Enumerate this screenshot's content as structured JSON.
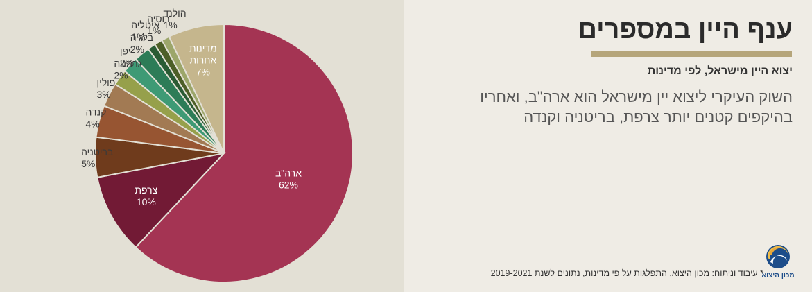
{
  "header": {
    "title": "ענף היין במספרים",
    "subtitle": "יצוא היין מישראל, לפי מדינות",
    "description": "השוק העיקרי ליצוא יין מישראל הוא ארה\"ב, ואחריו בהיקפים קטנים יותר צרפת, בריטניה וקנדה"
  },
  "footnote": "* עיבוד וניתוח: מכון היצוא, התפלגות על פי מדינות, נתונים לשנת 2019-2021",
  "logo": {
    "text": "מכון היצוא"
  },
  "colors": {
    "chart_bg": "#e3e0d5",
    "page_bg": "#efece5",
    "accent": "#b5a57a"
  },
  "chart_data": {
    "type": "pie",
    "title": "",
    "slices": [
      {
        "label": "ארה\"ב",
        "value": 62,
        "value_label": "62%",
        "color": "#a43453",
        "label_position": "inside"
      },
      {
        "label": "צרפת",
        "value": 10,
        "value_label": "10%",
        "color": "#721a35",
        "label_position": "inside"
      },
      {
        "label": "בריטניה",
        "value": 5,
        "value_label": "5%",
        "color": "#6f3b1c",
        "label_position": "outside"
      },
      {
        "label": "קנדה",
        "value": 4,
        "value_label": "4%",
        "color": "#975532",
        "label_position": "outside"
      },
      {
        "label": "פולין",
        "value": 3,
        "value_label": "3%",
        "color": "#a27a53",
        "label_position": "outside"
      },
      {
        "label": "גרמניה",
        "value": 2,
        "value_label": "2%",
        "color": "#96a04b",
        "label_position": "outside"
      },
      {
        "label": "יפן",
        "value": 2,
        "value_label": "2%",
        "color": "#3e9a75",
        "label_position": "outside"
      },
      {
        "label": "בלגיה",
        "value": 2,
        "value_label": "2%",
        "color": "#2d7c57",
        "label_position": "outside"
      },
      {
        "label": "איטליה",
        "value": 1,
        "value_label": "1%",
        "color": "#2a5b34",
        "label_position": "outside"
      },
      {
        "label": "רוסיה",
        "value": 1,
        "value_label": "1%",
        "color": "#4d5f27",
        "label_position": "outside"
      },
      {
        "label": "הולנד",
        "value": 1,
        "value_label": "1%",
        "color": "#9ca66a",
        "label_position": "outside"
      },
      {
        "label": "מדינות אחרות",
        "value": 7,
        "value_label": "7%",
        "color": "#c5b68d",
        "label_position": "inside"
      }
    ]
  }
}
